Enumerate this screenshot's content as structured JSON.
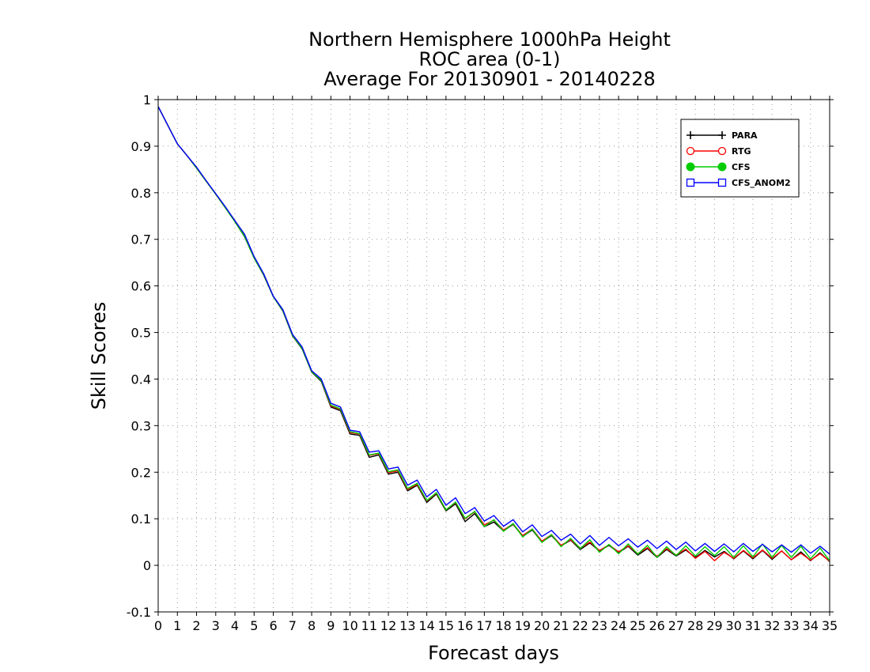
{
  "chart_data": {
    "type": "line",
    "title_lines": [
      "Northern Hemisphere 1000hPa Height",
      "ROC area (0-1)",
      "Average For 20130901 - 20140228"
    ],
    "xlabel": "Forecast days",
    "ylabel": "Skill Scores",
    "xlim": [
      0,
      35
    ],
    "ylim": [
      -0.1,
      1
    ],
    "x_ticks": [
      0,
      1,
      2,
      3,
      4,
      5,
      6,
      7,
      8,
      9,
      10,
      11,
      12,
      13,
      14,
      15,
      16,
      17,
      18,
      19,
      20,
      21,
      22,
      23,
      24,
      25,
      26,
      27,
      28,
      29,
      30,
      31,
      32,
      33,
      34,
      35
    ],
    "y_ticks": [
      -0.1,
      0,
      0.1,
      0.2,
      0.3,
      0.4,
      0.5,
      0.6,
      0.7,
      0.8,
      0.9,
      1
    ],
    "y_tick_labels": [
      "-0.1",
      "0",
      "0.1",
      "0.2",
      "0.3",
      "0.4",
      "0.5",
      "0.6",
      "0.7",
      "0.8",
      "0.9",
      "1"
    ],
    "grid": true,
    "legend_position": "top-right",
    "x": [
      0,
      0.5,
      1,
      1.5,
      2,
      2.5,
      3,
      3.5,
      4,
      4.5,
      5,
      5.5,
      6,
      6.5,
      7,
      7.5,
      8,
      8.5,
      9,
      9.5,
      10,
      10.5,
      11,
      11.5,
      12,
      12.5,
      13,
      13.5,
      14,
      14.5,
      15,
      15.5,
      16,
      16.5,
      17,
      17.5,
      18,
      18.5,
      19,
      19.5,
      20,
      20.5,
      21,
      21.5,
      22,
      22.5,
      23,
      23.5,
      24,
      24.5,
      25,
      25.5,
      26,
      26.5,
      27,
      27.5,
      28,
      28.5,
      29,
      29.5,
      30,
      30.5,
      31,
      31.5,
      32,
      32.5,
      33,
      33.5,
      34,
      34.5,
      35
    ],
    "series": [
      {
        "name": "PARA",
        "color": "#000000",
        "marker": "plus",
        "values": [
          0.985,
          0.945,
          0.905,
          0.88,
          0.853,
          0.825,
          0.797,
          0.768,
          0.738,
          0.706,
          0.66,
          0.623,
          0.577,
          0.546,
          0.493,
          0.465,
          0.415,
          0.395,
          0.34,
          0.332,
          0.282,
          0.279,
          0.232,
          0.237,
          0.196,
          0.2,
          0.16,
          0.172,
          0.135,
          0.153,
          0.117,
          0.132,
          0.094,
          0.111,
          0.083,
          0.093,
          0.074,
          0.088,
          0.062,
          0.076,
          0.05,
          0.064,
          0.042,
          0.054,
          0.034,
          0.048,
          0.031,
          0.043,
          0.027,
          0.041,
          0.022,
          0.036,
          0.017,
          0.034,
          0.02,
          0.033,
          0.017,
          0.032,
          0.018,
          0.03,
          0.014,
          0.031,
          0.014,
          0.032,
          0.013,
          0.031,
          0.012,
          0.029,
          0.01,
          0.027,
          0.008
        ]
      },
      {
        "name": "RTG",
        "color": "#ff0000",
        "marker": "circle-open",
        "values": [
          0.985,
          0.945,
          0.905,
          0.88,
          0.853,
          0.825,
          0.797,
          0.768,
          0.74,
          0.71,
          0.662,
          0.625,
          0.578,
          0.548,
          0.495,
          0.468,
          0.416,
          0.397,
          0.342,
          0.335,
          0.285,
          0.282,
          0.236,
          0.24,
          0.199,
          0.203,
          0.163,
          0.174,
          0.138,
          0.155,
          0.119,
          0.135,
          0.1,
          0.115,
          0.087,
          0.097,
          0.076,
          0.089,
          0.064,
          0.078,
          0.052,
          0.066,
          0.043,
          0.055,
          0.037,
          0.05,
          0.032,
          0.044,
          0.029,
          0.042,
          0.025,
          0.038,
          0.019,
          0.036,
          0.022,
          0.035,
          0.015,
          0.03,
          0.01,
          0.028,
          0.015,
          0.032,
          0.016,
          0.033,
          0.015,
          0.031,
          0.012,
          0.026,
          0.011,
          0.025,
          0.009
        ]
      },
      {
        "name": "CFS",
        "color": "#00cc00",
        "marker": "circle-filled",
        "values": [
          0.985,
          0.945,
          0.905,
          0.88,
          0.853,
          0.825,
          0.797,
          0.768,
          0.738,
          0.707,
          0.66,
          0.624,
          0.577,
          0.547,
          0.494,
          0.466,
          0.416,
          0.397,
          0.344,
          0.336,
          0.287,
          0.283,
          0.237,
          0.241,
          0.201,
          0.205,
          0.165,
          0.176,
          0.139,
          0.156,
          0.119,
          0.136,
          0.101,
          0.116,
          0.083,
          0.098,
          0.073,
          0.09,
          0.061,
          0.078,
          0.049,
          0.066,
          0.04,
          0.058,
          0.036,
          0.055,
          0.028,
          0.045,
          0.025,
          0.046,
          0.024,
          0.043,
          0.017,
          0.04,
          0.021,
          0.042,
          0.02,
          0.04,
          0.021,
          0.04,
          0.017,
          0.042,
          0.018,
          0.046,
          0.017,
          0.043,
          0.017,
          0.041,
          0.014,
          0.037,
          0.01
        ]
      },
      {
        "name": "CFS_ANOM2",
        "color": "#0000ff",
        "marker": "square-open",
        "values": [
          0.985,
          0.945,
          0.905,
          0.88,
          0.855,
          0.826,
          0.798,
          0.77,
          0.74,
          0.711,
          0.663,
          0.626,
          0.578,
          0.549,
          0.496,
          0.469,
          0.418,
          0.4,
          0.348,
          0.34,
          0.29,
          0.287,
          0.243,
          0.246,
          0.207,
          0.211,
          0.172,
          0.183,
          0.147,
          0.163,
          0.129,
          0.145,
          0.111,
          0.124,
          0.095,
          0.107,
          0.084,
          0.098,
          0.072,
          0.087,
          0.062,
          0.075,
          0.054,
          0.067,
          0.046,
          0.064,
          0.043,
          0.06,
          0.042,
          0.057,
          0.039,
          0.054,
          0.036,
          0.052,
          0.034,
          0.05,
          0.031,
          0.047,
          0.03,
          0.046,
          0.029,
          0.047,
          0.03,
          0.045,
          0.029,
          0.044,
          0.028,
          0.044,
          0.026,
          0.041,
          0.024
        ]
      }
    ]
  }
}
